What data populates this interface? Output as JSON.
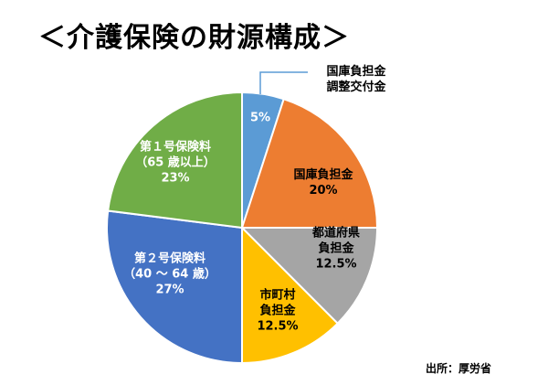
{
  "title": "＜介護保険の財源構成＞",
  "source": "出所：厚労省",
  "chart_data": {
    "type": "pie",
    "title": "＜介護保険の財源構成＞",
    "slices": [
      {
        "lines": [
          "5%"
        ],
        "value": 5,
        "color": "#5b9bd5",
        "label_color": "#ffffff",
        "callout": [
          "国庫負担金",
          "調整交付金"
        ]
      },
      {
        "lines": [
          "国庫負担金",
          "20%"
        ],
        "value": 20,
        "color": "#ed7d31",
        "label_color": "#000000"
      },
      {
        "lines": [
          "都道府県",
          "負担金",
          "12.5%"
        ],
        "value": 12.5,
        "color": "#a5a5a5",
        "label_color": "#000000"
      },
      {
        "lines": [
          "市町村",
          "負担金",
          "12.5%"
        ],
        "value": 12.5,
        "color": "#ffc000",
        "label_color": "#000000"
      },
      {
        "lines": [
          "第２号保険料",
          "（40 ～ 64 歳）",
          "27%"
        ],
        "value": 27,
        "color": "#4472c4",
        "label_color": "#ffffff"
      },
      {
        "lines": [
          "第１号保険料",
          "（65 歳以上）",
          "23%"
        ],
        "value": 23,
        "color": "#70ad47",
        "label_color": "#ffffff"
      }
    ],
    "start_angle_deg": 0,
    "direction": "clockwise",
    "legend": "none"
  }
}
